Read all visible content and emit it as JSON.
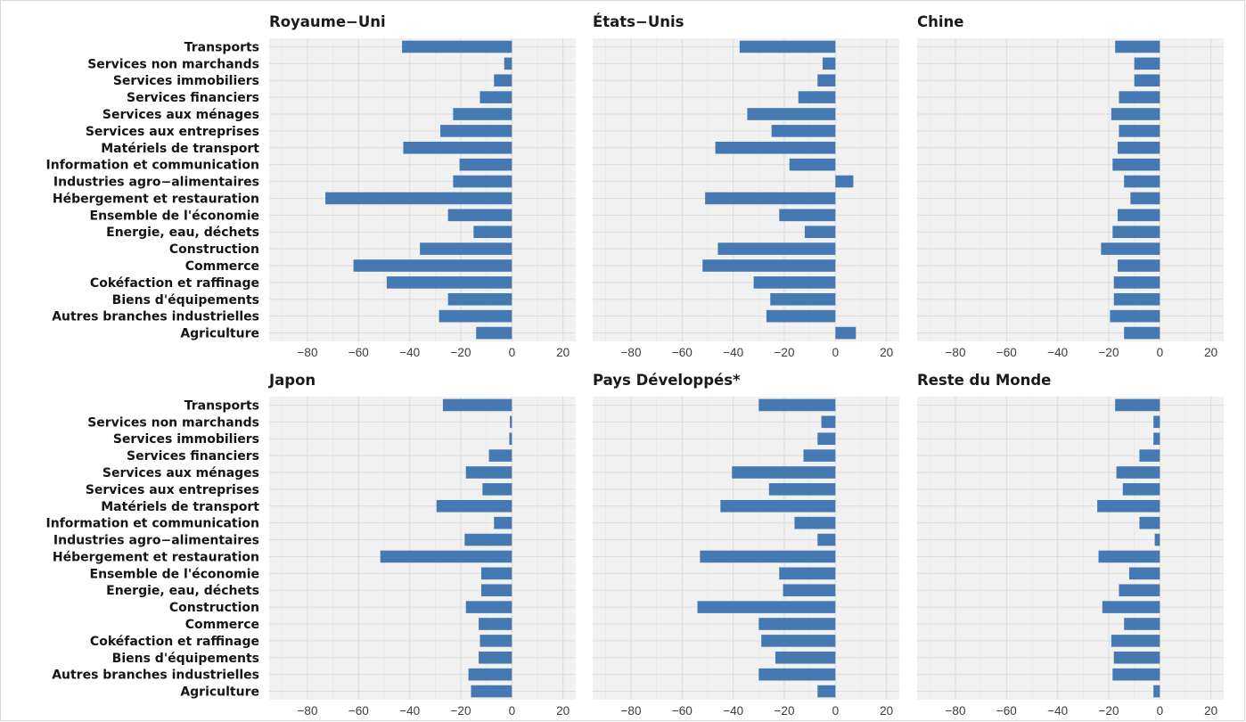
{
  "colors": {
    "bar": "#4679b2",
    "panel_bg": "#f0f1f0",
    "grid_major": "#dcdcdc",
    "grid_minor": "#e6e7e6"
  },
  "chart_data": {
    "type": "bar",
    "orientation": "horizontal",
    "facet_layout": "2x3",
    "grid": true,
    "xlim": [
      -95,
      25
    ],
    "x_ticks": [
      -80,
      -60,
      -40,
      -20,
      0,
      20
    ],
    "categories": [
      "Transports",
      "Services non marchands",
      "Services immobiliers",
      "Services financiers",
      "Services aux ménages",
      "Services aux entreprises",
      "Matériels de transport",
      "Information et communication",
      "Industries agro−alimentaires",
      "Hébergement et restauration",
      "Ensemble de l'économie",
      "Energie, eau, déchets ",
      "Construction",
      "Commerce",
      "Cokéfaction et raffinage",
      "Biens d'équipements",
      "Autres branches industrielles",
      "Agriculture"
    ],
    "panels": [
      {
        "title": "Royaume−Uni",
        "values": [
          -43,
          -3,
          -7,
          -12.5,
          -23,
          -28,
          -42.5,
          -20.5,
          -23,
          -73,
          -25,
          -15,
          -36,
          -62,
          -49,
          -25,
          -28.5,
          -14
        ]
      },
      {
        "title": "États−Unis",
        "values": [
          -37.5,
          -5,
          -7,
          -14.5,
          -34.5,
          -25,
          -47,
          -18,
          7,
          -51,
          -22,
          -12,
          -46,
          -52,
          -32,
          -25.5,
          -27,
          8
        ]
      },
      {
        "title": "Chine",
        "values": [
          -17.5,
          -10,
          -10,
          -16,
          -19,
          -16,
          -16.5,
          -18.5,
          -14,
          -11.5,
          -16.5,
          -18.5,
          -23,
          -16.5,
          -18,
          -18,
          -19.5,
          -14
        ]
      },
      {
        "title": "Japon",
        "values": [
          -27,
          -0.8,
          -1,
          -9,
          -18,
          -11.5,
          -29.5,
          -7,
          -18.5,
          -51.5,
          -12,
          -12,
          -18,
          -13,
          -12.5,
          -13,
          -17,
          -16
        ]
      },
      {
        "title": "Pays Développés*",
        "values": [
          -30,
          -5.5,
          -7,
          -12.5,
          -40.5,
          -26,
          -45,
          -16,
          -7,
          -53,
          -22,
          -20.5,
          -54,
          -30,
          -29,
          -23.5,
          -30,
          -7
        ]
      },
      {
        "title": "Reste du Monde",
        "values": [
          -17.5,
          -2.5,
          -2.5,
          -8,
          -17,
          -14.5,
          -24.5,
          -8,
          -2,
          -24,
          -12,
          -16,
          -22.5,
          -14,
          -19,
          -18,
          -18.5,
          -2.5
        ]
      }
    ]
  }
}
